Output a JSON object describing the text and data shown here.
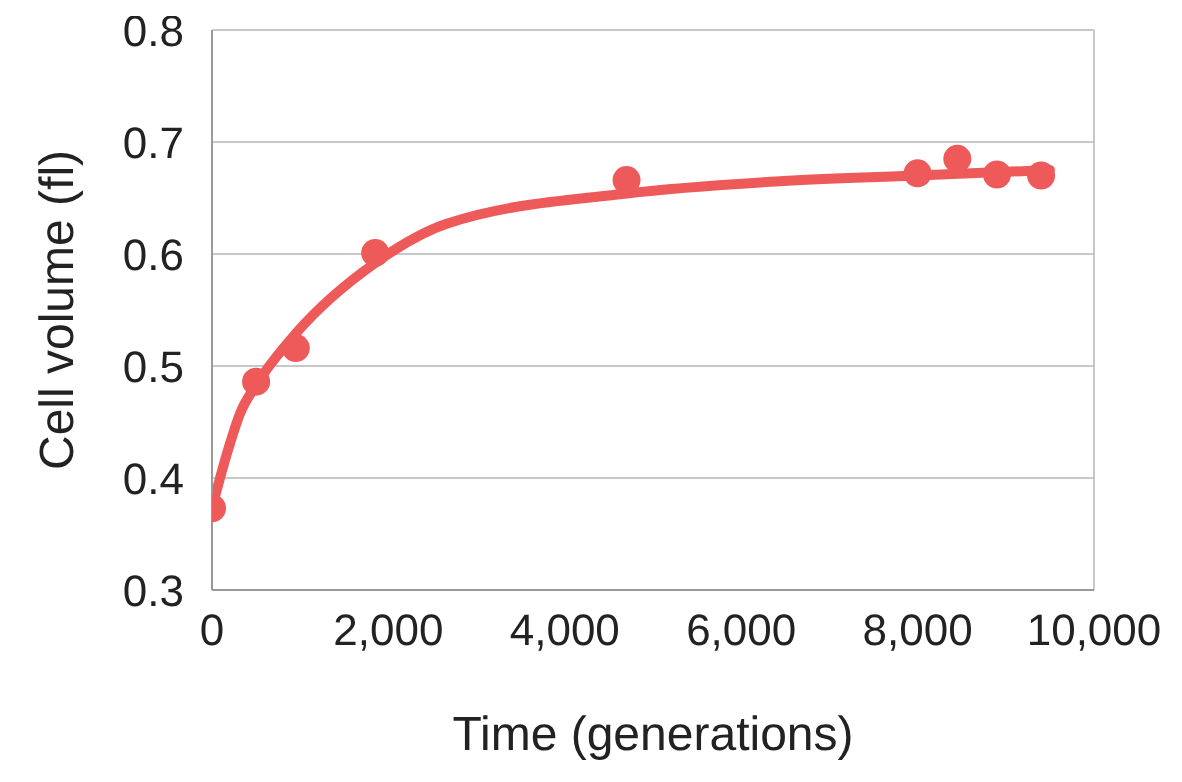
{
  "chart_data": {
    "type": "scatter",
    "xlabel": "Time (generations)",
    "ylabel": "Cell volume (fl)",
    "xlim": [
      0,
      10000
    ],
    "xticks": [
      {
        "value": 0,
        "label": "0"
      },
      {
        "value": 2000,
        "label": "2,000"
      },
      {
        "value": 4000,
        "label": "4,000"
      },
      {
        "value": 6000,
        "label": "6,000"
      },
      {
        "value": 8000,
        "label": "8,000"
      },
      {
        "value": 10000,
        "label": "10,000"
      }
    ],
    "ylim": [
      0.3,
      0.8
    ],
    "yticks": [
      0.3,
      0.4,
      0.5,
      0.6,
      0.7,
      0.8
    ],
    "grid": "y",
    "legend": false,
    "series": [
      {
        "type": "scatter",
        "color": "#ee5a5a",
        "marker": "circle",
        "x": [
          0,
          500,
          950,
          1850,
          4700,
          8000,
          8450,
          8900,
          9400
        ],
        "values": [
          0.373,
          0.486,
          0.516,
          0.601,
          0.666,
          0.672,
          0.685,
          0.671,
          0.67
        ]
      },
      {
        "type": "line",
        "color": "#ee5a5a",
        "marker": "none",
        "line_style": "solid",
        "x": [
          0,
          170,
          320,
          500,
          950,
          1850,
          2660,
          4700,
          6440,
          8000,
          9500
        ],
        "values": [
          0.373,
          0.422,
          0.458,
          0.483,
          0.529,
          0.592,
          0.627,
          0.654,
          0.665,
          0.67,
          0.675
        ]
      }
    ]
  }
}
